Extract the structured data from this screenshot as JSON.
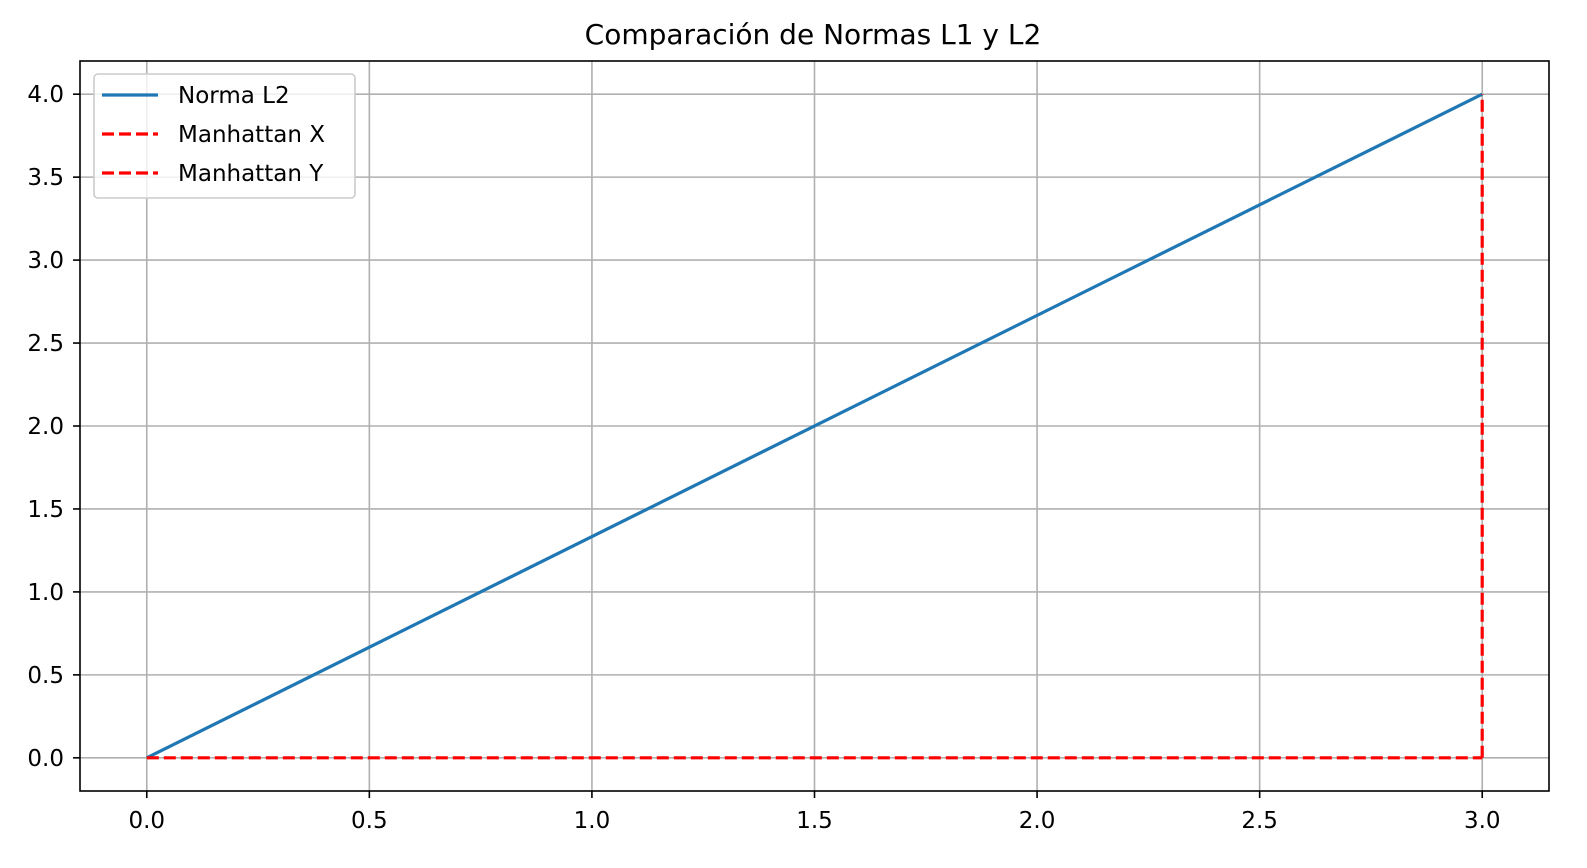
{
  "chart_data": {
    "type": "line",
    "title": "Comparación de Normas L1 y L2",
    "xlabel": "",
    "ylabel": "",
    "xlim": [
      -0.15,
      3.15
    ],
    "ylim": [
      -0.2,
      4.2
    ],
    "xticks": [
      0.0,
      0.5,
      1.0,
      1.5,
      2.0,
      2.5,
      3.0
    ],
    "yticks": [
      0.0,
      0.5,
      1.0,
      1.5,
      2.0,
      2.5,
      3.0,
      3.5,
      4.0
    ],
    "xtick_labels": [
      "0.0",
      "0.5",
      "1.0",
      "1.5",
      "2.0",
      "2.5",
      "3.0"
    ],
    "ytick_labels": [
      "0.0",
      "0.5",
      "1.0",
      "1.5",
      "2.0",
      "2.5",
      "3.0",
      "3.5",
      "4.0"
    ],
    "grid": true,
    "legend_position": "upper-left",
    "series": [
      {
        "name": "Norma L2",
        "x": [
          0,
          3
        ],
        "y": [
          0,
          4
        ],
        "color": "#1f77b4",
        "style": "solid"
      },
      {
        "name": "Manhattan X",
        "x": [
          0,
          3
        ],
        "y": [
          0,
          0
        ],
        "color": "#ff0000",
        "style": "dashed"
      },
      {
        "name": "Manhattan Y",
        "x": [
          3,
          3
        ],
        "y": [
          0,
          4
        ],
        "color": "#ff0000",
        "style": "dashed"
      }
    ]
  }
}
